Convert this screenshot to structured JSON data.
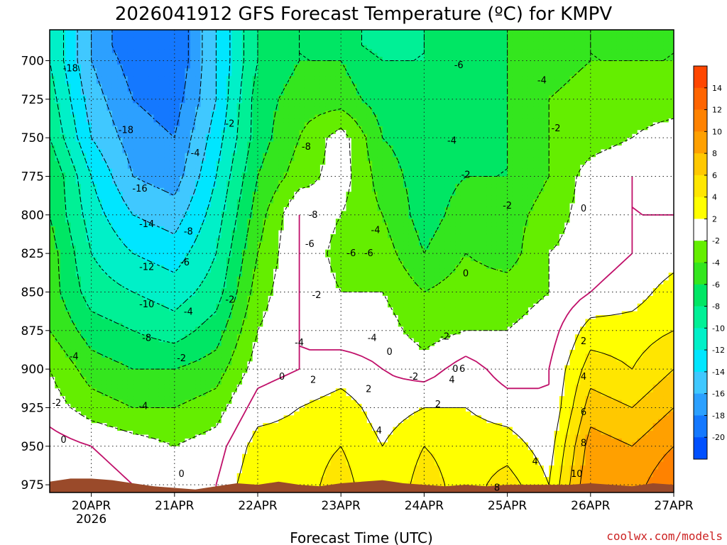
{
  "chart_data": {
    "type": "heatmap",
    "title": "2026041912 GFS Forecast Temperature (ºC) for KMPV",
    "xlabel": "Forecast Time (UTC)",
    "ylabel": "",
    "x_ticks": [
      "20APR",
      "21APR",
      "22APR",
      "23APR",
      "24APR",
      "25APR",
      "26APR",
      "27APR"
    ],
    "x_tick_sublabel": "2026",
    "xlim_hours": [
      -12,
      168
    ],
    "y_ticks": [
      700,
      725,
      750,
      775,
      800,
      825,
      850,
      875,
      900,
      925,
      950,
      975
    ],
    "ylim": [
      680,
      980
    ],
    "y_inverted": true,
    "grid": true,
    "colorbar": {
      "levels": [
        -20,
        -18,
        -16,
        -14,
        -12,
        -10,
        -8,
        -6,
        -4,
        -2,
        2,
        4,
        6,
        8,
        10,
        12,
        14
      ],
      "tick_labels": [
        "14",
        "12",
        "10",
        "8",
        "6",
        "4",
        "2",
        "-2",
        "-4",
        "-6",
        "-8",
        "-10",
        "-12",
        "-14",
        "-16",
        "-18",
        "-20"
      ],
      "colors": [
        "#0050ff",
        "#1478ff",
        "#2ca0ff",
        "#40c8ff",
        "#00e6ff",
        "#00f0c8",
        "#00f096",
        "#00e664",
        "#34e61e",
        "#64ee00",
        "#ffffff",
        "#ffff00",
        "#ffe600",
        "#ffc800",
        "#ffa000",
        "#ff8200",
        "#ff6400",
        "#ff4600"
      ]
    },
    "x_hours": [
      -12,
      0,
      12,
      24,
      36,
      48,
      60,
      72,
      84,
      96,
      108,
      120,
      132,
      144,
      156,
      168
    ],
    "pressure_levels": [
      690,
      700,
      725,
      750,
      775,
      800,
      825,
      850,
      875,
      900,
      925,
      950,
      975
    ],
    "temperature_grid": [
      [
        -10,
        -16,
        -20,
        -20,
        -14,
        -8,
        -6,
        -7,
        -9,
        -8,
        -7,
        -6,
        -5,
        -4,
        -5,
        -4
      ],
      [
        -10,
        -16,
        -19,
        -20,
        -14,
        -8,
        -6,
        -6,
        -8,
        -8,
        -7,
        -6,
        -5,
        -4,
        -4,
        -4
      ],
      [
        -9,
        -15,
        -18,
        -19,
        -14,
        -7,
        -5,
        -5,
        -7,
        -7,
        -7,
        -6,
        -4,
        -3,
        -3,
        -3
      ],
      [
        -8,
        -14,
        -17,
        -18,
        -13,
        -7,
        -4,
        -1,
        -6,
        -7,
        -7,
        -6,
        -4,
        -3,
        -2,
        -1
      ],
      [
        -6,
        -12,
        -16,
        -17,
        -12,
        -6,
        -3,
        -1,
        -5,
        -7,
        -6,
        -6,
        -4,
        -1,
        0,
        -1
      ],
      [
        -6,
        -11,
        -14,
        -15,
        -11,
        -5,
        0,
        -2,
        -4,
        -7,
        -5,
        -5,
        -3,
        -1,
        0,
        0
      ],
      [
        -5,
        -10,
        -12,
        -13,
        -10,
        -4,
        0,
        -3,
        -3,
        -6,
        -4,
        -5,
        -2,
        -1,
        0,
        1
      ],
      [
        -5,
        -9,
        -10,
        -11,
        -9,
        -3,
        0,
        -2,
        -2,
        -4,
        -3,
        -3,
        -2,
        0,
        1,
        3
      ],
      [
        -4,
        -7,
        -8,
        -9,
        -7,
        -2,
        0,
        -1,
        -1,
        -3,
        -2,
        -2,
        -1,
        3,
        3,
        4
      ],
      [
        -2,
        -5,
        -6,
        -6,
        -5,
        -1,
        0,
        1,
        0,
        -1,
        1,
        -1,
        0,
        5,
        4,
        6
      ],
      [
        -1,
        -3,
        -4,
        -4,
        -3,
        1,
        2,
        3,
        1,
        2,
        2,
        1,
        0,
        7,
        6,
        8
      ],
      [
        1,
        0,
        -1,
        -2,
        -1,
        3,
        3,
        4,
        2,
        4,
        3,
        3,
        1,
        9,
        8,
        10
      ],
      [
        2,
        1,
        0,
        -1,
        0,
        4,
        3,
        5,
        2,
        5,
        3,
        5,
        2,
        10,
        9,
        12
      ]
    ],
    "contour_labels": [
      {
        "t": -6,
        "p": 705,
        "v": "-18"
      },
      {
        "t": 10,
        "p": 745,
        "v": "-18"
      },
      {
        "t": 14,
        "p": 783,
        "v": "-16"
      },
      {
        "t": 16,
        "p": 806,
        "v": "-14"
      },
      {
        "t": 16,
        "p": 834,
        "v": "-12"
      },
      {
        "t": 16,
        "p": 858,
        "v": "-10"
      },
      {
        "t": 16,
        "p": 880,
        "v": "-8"
      },
      {
        "t": 28,
        "p": 811,
        "v": "-8"
      },
      {
        "t": 27,
        "p": 831,
        "v": "-6"
      },
      {
        "t": 30,
        "p": 760,
        "v": "-4"
      },
      {
        "t": 28,
        "p": 863,
        "v": "-4"
      },
      {
        "t": 15,
        "p": 924,
        "v": "-4"
      },
      {
        "t": -5,
        "p": 892,
        "v": "-4"
      },
      {
        "t": -10,
        "p": 922,
        "v": "-2"
      },
      {
        "t": -8,
        "p": 946,
        "v": "0"
      },
      {
        "t": 26,
        "p": 893,
        "v": "-2"
      },
      {
        "t": 26,
        "p": 968,
        "v": "0"
      },
      {
        "t": 40,
        "p": 855,
        "v": "-2"
      },
      {
        "t": 40,
        "p": 741,
        "v": "-2"
      },
      {
        "t": 55,
        "p": 905,
        "v": "0"
      },
      {
        "t": 60,
        "p": 883,
        "v": "-4"
      },
      {
        "t": 62,
        "p": 756,
        "v": "-8"
      },
      {
        "t": 64,
        "p": 800,
        "v": "-8"
      },
      {
        "t": 63,
        "p": 819,
        "v": "-6"
      },
      {
        "t": 65,
        "p": 852,
        "v": "-2"
      },
      {
        "t": 64,
        "p": 907,
        "v": "2"
      },
      {
        "t": 80,
        "p": 913,
        "v": "2"
      },
      {
        "t": 81,
        "p": 880,
        "v": "-4"
      },
      {
        "t": 82,
        "p": 810,
        "v": "-4"
      },
      {
        "t": 80,
        "p": 825,
        "v": "-6"
      },
      {
        "t": 75,
        "p": 825,
        "v": "-6"
      },
      {
        "t": 86,
        "p": 889,
        "v": "0"
      },
      {
        "t": 83,
        "p": 940,
        "v": "4"
      },
      {
        "t": 93,
        "p": 905,
        "v": "-2"
      },
      {
        "t": 105,
        "p": 900,
        "v": "0"
      },
      {
        "t": 104,
        "p": 907,
        "v": "4"
      },
      {
        "t": 107,
        "p": 900,
        "v": "6"
      },
      {
        "t": 100,
        "p": 923,
        "v": "2"
      },
      {
        "t": 102,
        "p": 879,
        "v": "-2"
      },
      {
        "t": 108,
        "p": 838,
        "v": "0"
      },
      {
        "t": 104,
        "p": 752,
        "v": "-4"
      },
      {
        "t": 108,
        "p": 774,
        "v": "-2"
      },
      {
        "t": 120,
        "p": 794,
        "v": "-2"
      },
      {
        "t": 130,
        "p": 713,
        "v": "-4"
      },
      {
        "t": 106,
        "p": 703,
        "v": "-6"
      },
      {
        "t": 134,
        "p": 744,
        "v": "-2"
      },
      {
        "t": 142,
        "p": 796,
        "v": "0"
      },
      {
        "t": 142,
        "p": 882,
        "v": "2"
      },
      {
        "t": 142,
        "p": 905,
        "v": "4"
      },
      {
        "t": 142,
        "p": 928,
        "v": "6"
      },
      {
        "t": 142,
        "p": 948,
        "v": "8"
      },
      {
        "t": 140,
        "p": 968,
        "v": "10"
      },
      {
        "t": 128,
        "p": 960,
        "v": "4"
      },
      {
        "t": 117,
        "p": 977,
        "v": "8"
      }
    ],
    "terrain_surface_pressure": [
      [
        -12,
        973
      ],
      [
        -6,
        971
      ],
      [
        0,
        971
      ],
      [
        6,
        972
      ],
      [
        12,
        974
      ],
      [
        18,
        976
      ],
      [
        24,
        977
      ],
      [
        30,
        978
      ],
      [
        36,
        976
      ],
      [
        42,
        974
      ],
      [
        48,
        975
      ],
      [
        54,
        973
      ],
      [
        60,
        975
      ],
      [
        66,
        976
      ],
      [
        72,
        974
      ],
      [
        78,
        973
      ],
      [
        84,
        972
      ],
      [
        90,
        974
      ],
      [
        96,
        975
      ],
      [
        102,
        976
      ],
      [
        108,
        975
      ],
      [
        114,
        976
      ],
      [
        120,
        975
      ],
      [
        126,
        975
      ],
      [
        132,
        975
      ],
      [
        138,
        975
      ],
      [
        144,
        974
      ],
      [
        150,
        975
      ],
      [
        156,
        976
      ],
      [
        162,
        974
      ],
      [
        168,
        975
      ]
    ]
  },
  "credit": "coolwx.com/models"
}
